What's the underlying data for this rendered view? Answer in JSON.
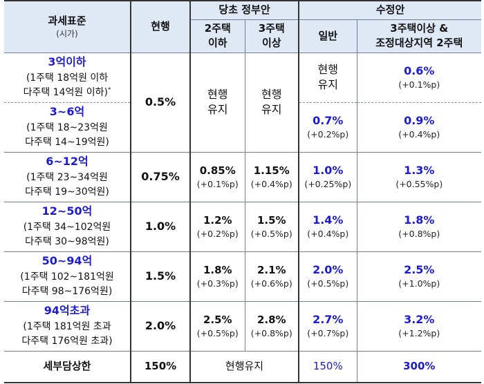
{
  "header": {
    "tax_base": "과세표준",
    "tax_base_sub": "(시가)",
    "current": "현행",
    "original_plan": "당초 정부안",
    "two_or_less": "2주택\n이하",
    "three_or_more": "3주택\n이상",
    "revised_plan": "수정안",
    "general": "일반",
    "three_plus_and_adjusted": "3주택이상 &\n조정대상지역 2주택"
  },
  "rows": [
    {
      "range": "3억이하",
      "detail1": "(1주택  18억원  이하",
      "detail2": "다주택  14억원  이하)",
      "note": "*",
      "current": "0.5%",
      "two_or_less": "현행\n유지",
      "three_or_more": "현행\n유지",
      "general": "현행\n유지",
      "general_sub": "",
      "three_plus": "0.6%",
      "three_plus_sub": "(+0.1%p)"
    },
    {
      "range": "3~6억",
      "detail1": "(1주택  18~23억원",
      "detail2": "다주택  14~19억원)",
      "general": "0.7%",
      "general_sub": "(+0.2%p)",
      "three_plus": "0.9%",
      "three_plus_sub": "(+0.4%p)"
    },
    {
      "range": "6~12억",
      "detail1": "(1주택  23~34억원",
      "detail2": "다주택  19~30억원)",
      "current": "0.75%",
      "two_or_less": "0.85%",
      "two_or_less_sub": "(+0.1%p)",
      "three_or_more": "1.15%",
      "three_or_more_sub": "(+0.4%p)",
      "general": "1.0%",
      "general_sub": "(+0.25%p)",
      "three_plus": "1.3%",
      "three_plus_sub": "(+0.55%p)"
    },
    {
      "range": "12~50억",
      "detail1": "(1주택  34~102억원",
      "detail2": "다주택  30~98억원)",
      "current": "1.0%",
      "two_or_less": "1.2%",
      "two_or_less_sub": "(+0.2%p)",
      "three_or_more": "1.5%",
      "three_or_more_sub": "(+0.5%p)",
      "general": "1.4%",
      "general_sub": "(+0.4%p)",
      "three_plus": "1.8%",
      "three_plus_sub": "(+0.8%p)"
    },
    {
      "range": "50~94억",
      "detail1": "(1주택  102~181억원",
      "detail2": "다주택  98~176억원)",
      "current": "1.5%",
      "two_or_less": "1.8%",
      "two_or_less_sub": "(+0.3%p)",
      "three_or_more": "2.1%",
      "three_or_more_sub": "(+0.6%p)",
      "general": "2.0%",
      "general_sub": "(+0.5%p)",
      "three_plus": "2.5%",
      "three_plus_sub": "(+1.0%p)"
    },
    {
      "range": "94억초과",
      "detail1": "(1주택  181억원  초과",
      "detail2": "다주택  176억원  초과)",
      "current": "2.0%",
      "two_or_less": "2.5%",
      "two_or_less_sub": "(+0.5%p)",
      "three_or_more": "2.8%",
      "three_or_more_sub": "(+0.8%p)",
      "general": "2.7%",
      "general_sub": "(+0.7%p)",
      "three_plus": "3.2%",
      "three_plus_sub": "(+1.2%p)"
    }
  ],
  "ceiling": {
    "label": "세부담상한",
    "current": "150%",
    "original": "현행유지",
    "general": "150%",
    "three_plus": "300%"
  }
}
